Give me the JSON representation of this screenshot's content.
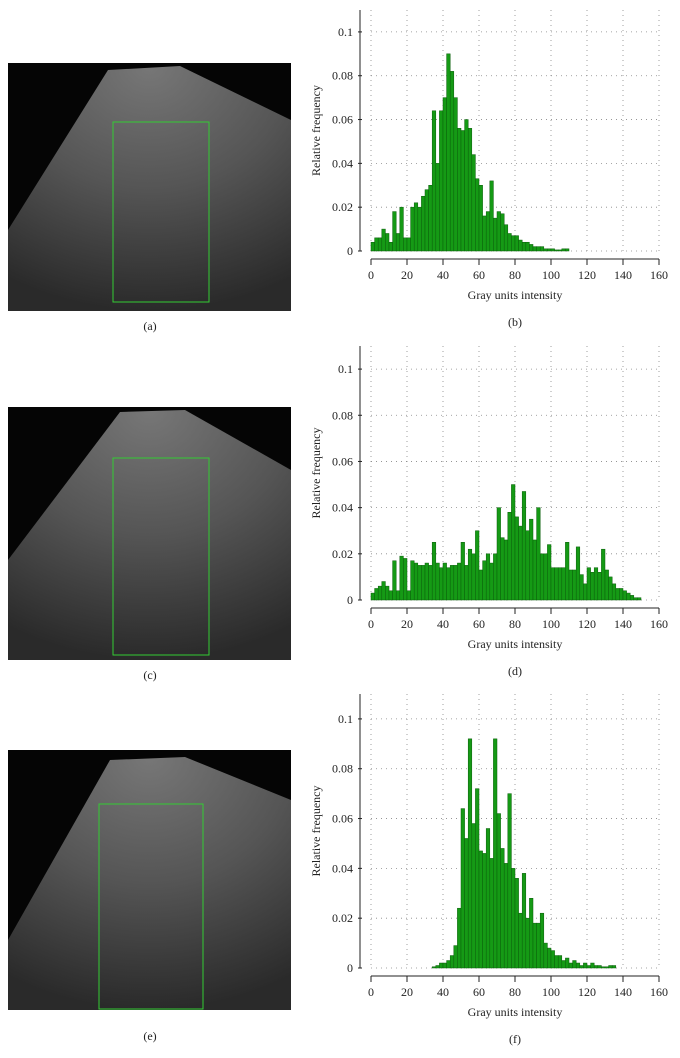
{
  "images": [
    {
      "caption": "(a)"
    },
    {
      "caption": "(c)"
    },
    {
      "caption": "(e)"
    }
  ],
  "chart_data": [
    {
      "type": "histogram",
      "caption": "(b)",
      "xlabel": "Gray units intensity",
      "ylabel": "Relative frequency",
      "color": "#159a15",
      "grid": "dotted",
      "xlim": [
        0,
        160
      ],
      "ylim": [
        0,
        0.11
      ],
      "xticks": [
        0,
        20,
        40,
        60,
        80,
        100,
        120,
        140,
        160
      ],
      "yticks": [
        0,
        0.02,
        0.04,
        0.06,
        0.08,
        0.1
      ],
      "bins": [
        0,
        2,
        4,
        6,
        8,
        10,
        12,
        14,
        16,
        18,
        20,
        22,
        24,
        26,
        28,
        30,
        32,
        34,
        36,
        38,
        40,
        42,
        44,
        46,
        48,
        50,
        52,
        54,
        56,
        58,
        60,
        62,
        64,
        66,
        68,
        70,
        72,
        74,
        76,
        78,
        80,
        82,
        84,
        86,
        88,
        90,
        92,
        94,
        96,
        98,
        100,
        102,
        104,
        106,
        108,
        110
      ],
      "values": [
        0.004,
        0.006,
        0.006,
        0.01,
        0.008,
        0.004,
        0.018,
        0.008,
        0.02,
        0.006,
        0.006,
        0.02,
        0.022,
        0.02,
        0.025,
        0.028,
        0.03,
        0.064,
        0.04,
        0.064,
        0.07,
        0.09,
        0.082,
        0.07,
        0.056,
        0.055,
        0.06,
        0.056,
        0.044,
        0.033,
        0.03,
        0.016,
        0.018,
        0.032,
        0.015,
        0.018,
        0.017,
        0.012,
        0.008,
        0.007,
        0.007,
        0.005,
        0.004,
        0.004,
        0.003,
        0.002,
        0.002,
        0.002,
        0.001,
        0.001,
        0.001,
        0.0005,
        0.0005,
        0.001,
        0.001
      ]
    },
    {
      "type": "histogram",
      "caption": "(d)",
      "xlabel": "Gray units intensity",
      "ylabel": "Relative frequency",
      "color": "#159a15",
      "grid": "dotted",
      "xlim": [
        0,
        160
      ],
      "ylim": [
        0,
        0.11
      ],
      "xticks": [
        0,
        20,
        40,
        60,
        80,
        100,
        120,
        140,
        160
      ],
      "yticks": [
        0,
        0.02,
        0.04,
        0.06,
        0.08,
        0.1
      ],
      "bins": [
        0,
        2,
        4,
        6,
        8,
        10,
        12,
        14,
        16,
        18,
        20,
        22,
        24,
        26,
        28,
        30,
        32,
        34,
        36,
        38,
        40,
        42,
        44,
        46,
        48,
        50,
        52,
        54,
        56,
        58,
        60,
        62,
        64,
        66,
        68,
        70,
        72,
        74,
        76,
        78,
        80,
        82,
        84,
        86,
        88,
        90,
        92,
        94,
        96,
        98,
        100,
        102,
        104,
        106,
        108,
        110,
        112,
        114,
        116,
        118,
        120,
        122,
        124,
        126,
        128,
        130,
        132,
        134,
        136,
        138,
        140,
        142,
        144,
        146,
        148,
        150
      ],
      "values": [
        0.003,
        0.005,
        0.006,
        0.008,
        0.006,
        0.004,
        0.017,
        0.004,
        0.019,
        0.018,
        0.004,
        0.017,
        0.016,
        0.015,
        0.015,
        0.016,
        0.015,
        0.025,
        0.016,
        0.014,
        0.016,
        0.014,
        0.015,
        0.015,
        0.016,
        0.025,
        0.015,
        0.022,
        0.02,
        0.03,
        0.013,
        0.017,
        0.02,
        0.016,
        0.02,
        0.04,
        0.027,
        0.026,
        0.038,
        0.05,
        0.036,
        0.032,
        0.047,
        0.03,
        0.035,
        0.026,
        0.04,
        0.02,
        0.02,
        0.024,
        0.014,
        0.014,
        0.014,
        0.014,
        0.025,
        0.013,
        0.013,
        0.023,
        0.011,
        0.007,
        0.014,
        0.012,
        0.014,
        0.012,
        0.022,
        0.013,
        0.01,
        0.007,
        0.005,
        0.005,
        0.004,
        0.003,
        0.002,
        0.001,
        0.001
      ]
    },
    {
      "type": "histogram",
      "caption": "(f)",
      "xlabel": "Gray units intensity",
      "ylabel": "Relative frequency",
      "color": "#159a15",
      "grid": "dotted",
      "xlim": [
        0,
        160
      ],
      "ylim": [
        0,
        0.11
      ],
      "xticks": [
        0,
        20,
        40,
        60,
        80,
        100,
        120,
        140,
        160
      ],
      "yticks": [
        0,
        0.02,
        0.04,
        0.06,
        0.08,
        0.1
      ],
      "bins": [
        34,
        36,
        38,
        40,
        42,
        44,
        46,
        48,
        50,
        52,
        54,
        56,
        58,
        60,
        62,
        64,
        66,
        68,
        70,
        72,
        74,
        76,
        78,
        80,
        82,
        84,
        86,
        88,
        90,
        92,
        94,
        96,
        98,
        100,
        102,
        104,
        106,
        108,
        110,
        112,
        114,
        116,
        118,
        120,
        122,
        124,
        126,
        128,
        130,
        132,
        134,
        136
      ],
      "values": [
        0.0005,
        0.001,
        0.002,
        0.002,
        0.003,
        0.005,
        0.009,
        0.024,
        0.064,
        0.052,
        0.092,
        0.058,
        0.072,
        0.047,
        0.046,
        0.056,
        0.044,
        0.092,
        0.062,
        0.048,
        0.042,
        0.07,
        0.04,
        0.036,
        0.022,
        0.038,
        0.02,
        0.028,
        0.018,
        0.018,
        0.022,
        0.01,
        0.008,
        0.007,
        0.005,
        0.005,
        0.003,
        0.004,
        0.002,
        0.003,
        0.002,
        0.001,
        0.002,
        0.001,
        0.002,
        0.001,
        0.001,
        0.0005,
        0.0005,
        0.001,
        0.001
      ]
    }
  ]
}
